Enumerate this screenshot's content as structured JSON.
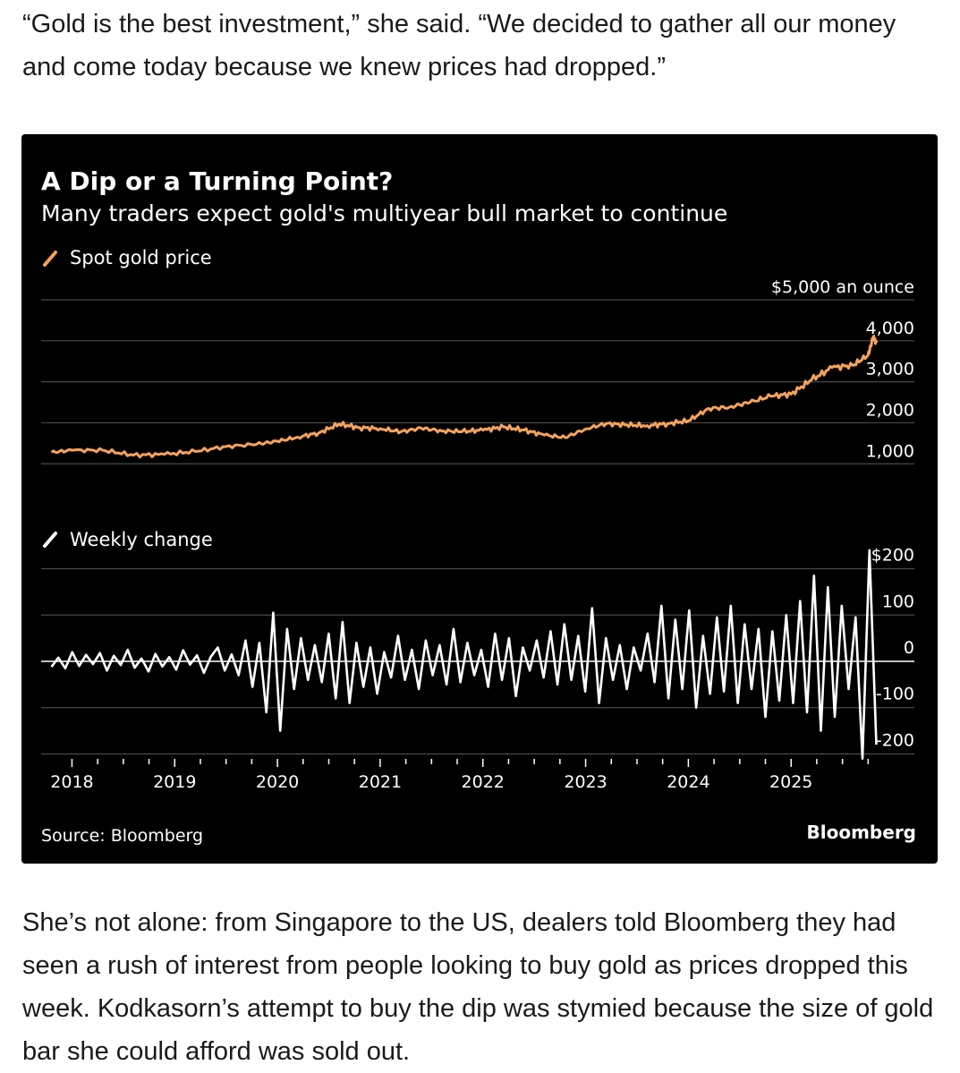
{
  "article": {
    "paragraph_before": "“Gold is the best investment,” she said. “We decided to gather all our money and come today because we knew prices had dropped.”",
    "paragraph_after": "She’s not alone: from Singapore to the US, dealers told Bloomberg they had seen a rush of interest from people looking to buy gold as prices dropped this week. Kodkasorn’s attempt to buy the dip was stymied because the size of gold bar she could afford was sold out."
  },
  "chart": {
    "title": "A Dip or a Turning Point?",
    "subtitle": "Many traders expect gold's multiyear bull market to continue",
    "source": "Source: Bloomberg",
    "brand": "Bloomberg",
    "accent_color": "#f5a35c",
    "line_color": "#ffffff",
    "background": "#000000"
  },
  "chart_data": [
    {
      "type": "line",
      "name": "spot-gold-price",
      "legend": "Spot gold price",
      "unit_label": "$5,000 an ounce",
      "y_ticks": [
        1000,
        2000,
        3000,
        4000,
        5000
      ],
      "y_tick_labels": [
        "1,000",
        "2,000",
        "3,000",
        "4,000",
        "$5,000 an ounce"
      ],
      "ylim": [
        700,
        5000
      ],
      "xlim": [
        2017.7,
        2026.2
      ],
      "x": [
        2017.8,
        2018.0,
        2018.3,
        2018.6,
        2018.9,
        2019.2,
        2019.5,
        2019.8,
        2020.0,
        2020.2,
        2020.4,
        2020.6,
        2020.8,
        2021.0,
        2021.2,
        2021.4,
        2021.6,
        2021.8,
        2022.0,
        2022.2,
        2022.4,
        2022.6,
        2022.8,
        2023.0,
        2023.2,
        2023.4,
        2023.6,
        2023.8,
        2024.0,
        2024.2,
        2024.4,
        2024.6,
        2024.8,
        2025.0,
        2025.2,
        2025.4,
        2025.6,
        2025.75,
        2025.8,
        2025.83
      ],
      "values": [
        1280,
        1330,
        1330,
        1210,
        1230,
        1300,
        1420,
        1480,
        1550,
        1650,
        1750,
        1970,
        1880,
        1860,
        1780,
        1870,
        1800,
        1790,
        1820,
        1900,
        1820,
        1700,
        1640,
        1850,
        1980,
        1950,
        1930,
        1980,
        2050,
        2350,
        2380,
        2500,
        2650,
        2700,
        3050,
        3350,
        3400,
        3650,
        4100,
        3950
      ]
    },
    {
      "type": "line",
      "name": "weekly-change",
      "legend": "Weekly change",
      "y_ticks": [
        -200,
        -100,
        0,
        100,
        200
      ],
      "y_tick_labels": [
        "-200",
        "-100",
        "0",
        "100",
        "$200"
      ],
      "ylim": [
        -230,
        230
      ],
      "xlim": [
        2017.7,
        2026.2
      ],
      "x_start": 2017.8,
      "x_end": 2025.83,
      "values": [
        -12,
        8,
        -15,
        20,
        -10,
        14,
        -6,
        18,
        -20,
        12,
        -8,
        25,
        -14,
        6,
        -22,
        16,
        -11,
        9,
        -18,
        24,
        -7,
        13,
        -25,
        10,
        30,
        -20,
        15,
        -30,
        45,
        -55,
        40,
        -110,
        105,
        -150,
        70,
        -60,
        50,
        -40,
        35,
        -45,
        60,
        -80,
        85,
        -90,
        40,
        -55,
        30,
        -70,
        20,
        -35,
        55,
        -40,
        25,
        -60,
        45,
        -30,
        35,
        -50,
        70,
        -45,
        40,
        -30,
        25,
        -55,
        60,
        -40,
        50,
        -75,
        30,
        -20,
        45,
        -35,
        65,
        -50,
        80,
        -40,
        55,
        -65,
        115,
        -90,
        50,
        -40,
        35,
        -60,
        30,
        -20,
        60,
        -45,
        120,
        -80,
        90,
        -60,
        110,
        -100,
        55,
        -70,
        95,
        -65,
        120,
        -90,
        80,
        -60,
        70,
        -120,
        65,
        -85,
        100,
        -90,
        130,
        -110,
        185,
        -150,
        160,
        -120,
        120,
        -60,
        95,
        -210,
        240,
        -180
      ],
      "annotations": []
    }
  ],
  "x_axis": {
    "tick_labels": [
      "2018",
      "2019",
      "2020",
      "2021",
      "2022",
      "2023",
      "2024",
      "2025"
    ],
    "tick_values": [
      2018,
      2019,
      2020,
      2021,
      2022,
      2023,
      2024,
      2025
    ],
    "minor_ticks_per_year": 4
  }
}
